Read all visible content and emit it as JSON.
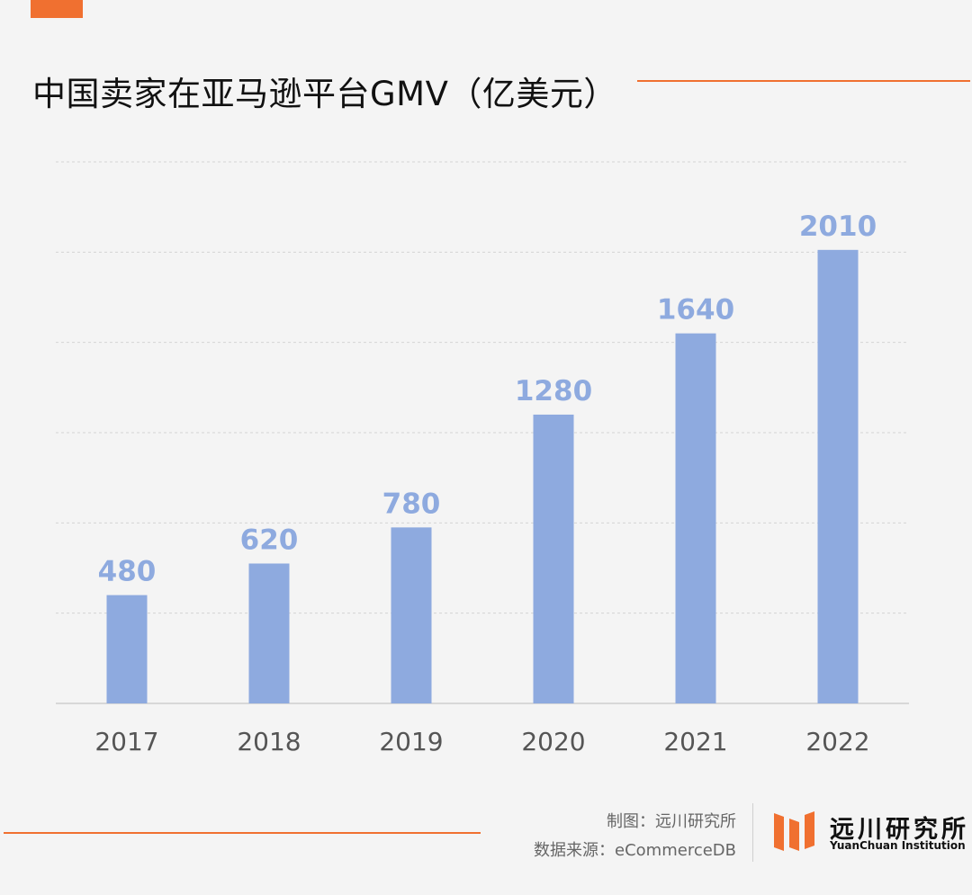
{
  "header": {
    "title": "中国卖家在亚马逊平台GMV（亿美元）"
  },
  "chart_data": {
    "type": "bar",
    "title": "中国卖家在亚马逊平台GMV（亿美元）",
    "categories": [
      "2017",
      "2018",
      "2019",
      "2020",
      "2021",
      "2022"
    ],
    "values": [
      480,
      620,
      780,
      1280,
      1640,
      2010
    ],
    "xlabel": "",
    "ylabel": "",
    "ylim": [
      0,
      2400
    ],
    "grid": true,
    "legend": "none",
    "bar_color": "#8eaadf",
    "label_color": "#8eaadf"
  },
  "footer": {
    "credit_line1": "制图：远川研究所",
    "credit_line2": "数据来源：eCommerceDB"
  },
  "logo": {
    "name_cn": "远川研究所",
    "name_en": "YuanChuan Institution"
  },
  "colors": {
    "accent": "#f07030",
    "bar": "#8eaadf",
    "background": "#f4f4f4"
  }
}
